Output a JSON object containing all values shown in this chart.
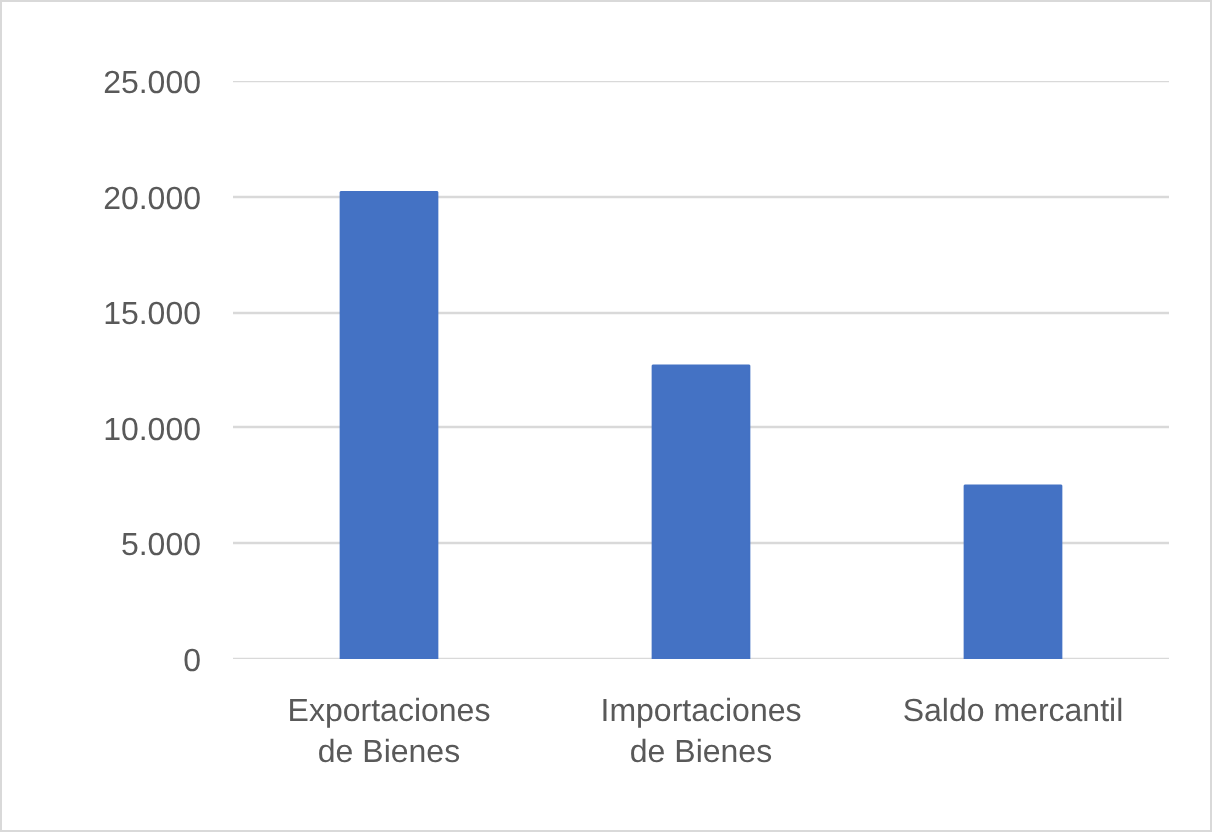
{
  "chart_data": {
    "type": "bar",
    "categories": [
      "Exportaciones de Bienes",
      "Importaciones de Bienes",
      "Saldo mercantil"
    ],
    "values": [
      20200,
      12700,
      7500
    ],
    "color": "#4472c4",
    "ylim": [
      0,
      25000
    ],
    "yticks": [
      {
        "value": 0,
        "label": "0"
      },
      {
        "value": 5000,
        "label": "5.000"
      },
      {
        "value": 10000,
        "label": "10.000"
      },
      {
        "value": 15000,
        "label": "15.000"
      },
      {
        "value": 20000,
        "label": "20.000"
      },
      {
        "value": 25000,
        "label": "25.000"
      }
    ],
    "grid": "y"
  }
}
